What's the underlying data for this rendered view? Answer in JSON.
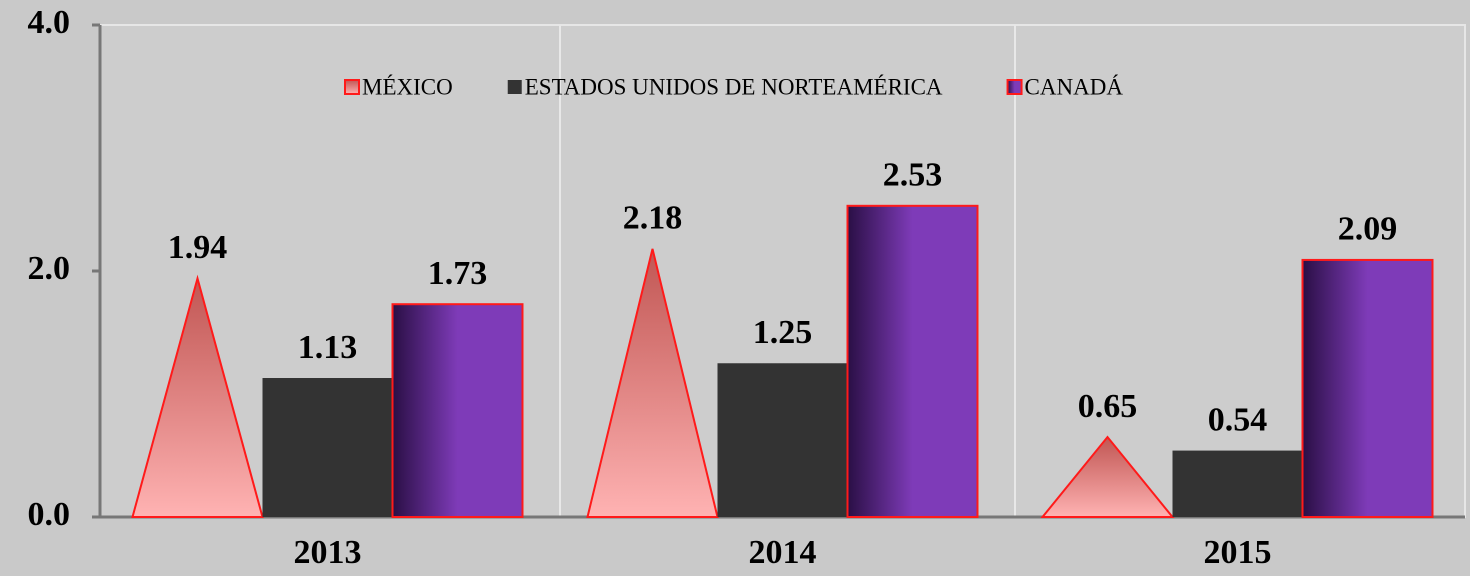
{
  "chart_data": {
    "type": "bar",
    "categories": [
      "2013",
      "2014",
      "2015"
    ],
    "series": [
      {
        "name": "MÉXICO",
        "color": "#c0504d",
        "shape": "triangle",
        "values": [
          1.94,
          2.18,
          0.65
        ]
      },
      {
        "name": "ESTADOS UNIDOS DE NORTEAMÉRICA",
        "color": "#333333",
        "values": [
          1.13,
          1.25,
          0.54
        ]
      },
      {
        "name": "CANADÁ",
        "color": "#7e3bb8",
        "values": [
          1.73,
          2.53,
          2.09
        ]
      }
    ],
    "ylim": [
      0,
      4
    ],
    "yticks": [
      {
        "value": 0,
        "label": "0.0"
      },
      {
        "value": 2,
        "label": "2.0"
      },
      {
        "value": 4,
        "label": "4.0"
      }
    ],
    "legend": "top"
  }
}
